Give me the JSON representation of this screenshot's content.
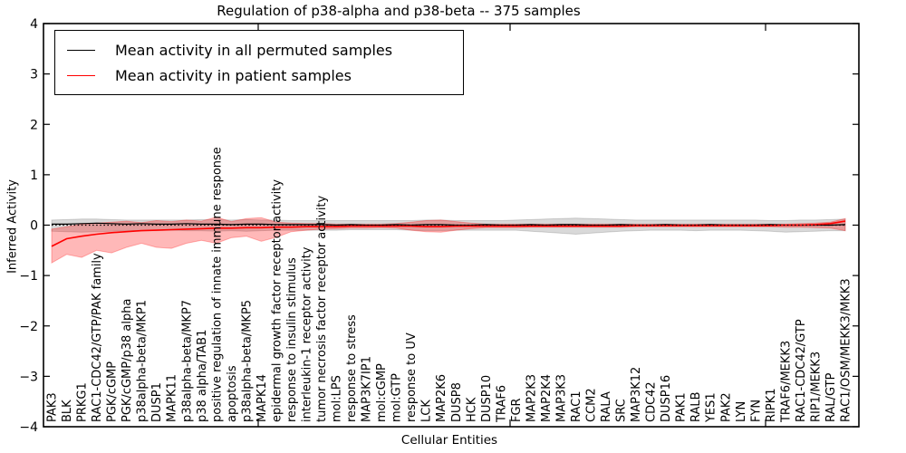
{
  "colors": {
    "permuted_line": "#000000",
    "patient_line": "#ff0000",
    "permuted_band": "rgba(0,0,0,0.15)",
    "patient_band": "rgba(255,0,0,0.28)",
    "frame": "#000000",
    "background": "#ffffff"
  },
  "chart_data": {
    "type": "line",
    "title": "Regulation of p38-alpha and p38-beta -- 375 samples",
    "xlabel": "Cellular Entities",
    "ylabel": "Inferred Activity",
    "ylim": [
      -4,
      4
    ],
    "yticks": [
      "4",
      "3",
      "2",
      "1",
      "0",
      "−1",
      "−2",
      "−3",
      "−4"
    ],
    "grid": false,
    "legend_position": "upper left",
    "zero_line": "dotted",
    "categories": [
      "PAK3",
      "BLK",
      "PRKG1",
      "RAC1-CDC42/GTP/PAK family",
      "PGK/cGMP",
      "PGK/cGMP/p38 alpha",
      "p38alpha-beta/MKP1",
      "DUSP1",
      "MAPK11",
      "p38alpha-beta/MKP7",
      "p38 alpha/TAB1",
      "positive regulation of innate immune response",
      "apoptosis",
      "p38alpha-beta/MKP5",
      "MAPK14",
      "epidermal growth factor receptor activity",
      "response to insulin stimulus",
      "interleukin-1 receptor activity",
      "tumor necrosis factor receptor activity",
      "mol:LPS",
      "response to stress",
      "MAP3K7IP1",
      "mol:cGMP",
      "mol:GTP",
      "response to UV",
      "LCK",
      "MAP2K6",
      "DUSP8",
      "HCK",
      "DUSP10",
      "TRAF6",
      "FGR",
      "MAP2K3",
      "MAP2K4",
      "MAP3K3",
      "RAC1",
      "CCM2",
      "RALA",
      "SRC",
      "MAP3K12",
      "CDC42",
      "DUSP16",
      "PAK1",
      "RALB",
      "YES1",
      "PAK2",
      "LYN",
      "FYN",
      "RIPK1",
      "TRAF6/MEKK3",
      "RAC1-CDC42/GTP",
      "RIP1/MEKK3",
      "RAL/GTP",
      "RAC1/OSM/MEKK3/MKK3"
    ],
    "series": [
      {
        "name": "Mean activity in all permuted samples",
        "color": "#000000",
        "band_color": "rgba(0,0,0,0.15)",
        "values": [
          0.02,
          0.02,
          0.03,
          0.04,
          0.03,
          0.02,
          0.03,
          0.02,
          0.02,
          0.03,
          0.02,
          0.02,
          0.01,
          0.02,
          0.02,
          0.01,
          0.01,
          0.01,
          0.01,
          0.0,
          0.01,
          0.0,
          0.0,
          0.01,
          0.0,
          0.01,
          0.01,
          0.0,
          0.0,
          0.01,
          0.0,
          0.0,
          0.01,
          0.0,
          0.01,
          0.01,
          0.0,
          0.0,
          0.01,
          0.0,
          0.0,
          0.01,
          0.0,
          0.0,
          0.01,
          0.0,
          0.0,
          0.0,
          0.01,
          0.0,
          0.0,
          0.0,
          0.0,
          0.01
        ],
        "band_high": [
          0.1,
          0.11,
          0.12,
          0.12,
          0.11,
          0.1,
          0.1,
          0.1,
          0.1,
          0.1,
          0.11,
          0.11,
          0.1,
          0.11,
          0.1,
          0.1,
          0.09,
          0.09,
          0.09,
          0.09,
          0.09,
          0.09,
          0.09,
          0.09,
          0.09,
          0.1,
          0.1,
          0.09,
          0.09,
          0.09,
          0.09,
          0.1,
          0.11,
          0.12,
          0.13,
          0.14,
          0.13,
          0.12,
          0.11,
          0.1,
          0.1,
          0.1,
          0.1,
          0.1,
          0.1,
          0.1,
          0.1,
          0.1,
          0.09,
          0.09,
          0.1,
          0.1,
          0.11,
          0.12
        ],
        "band_low": [
          -0.12,
          -0.13,
          -0.14,
          -0.13,
          -0.12,
          -0.11,
          -0.11,
          -0.11,
          -0.1,
          -0.11,
          -0.11,
          -0.12,
          -0.11,
          -0.12,
          -0.11,
          -0.1,
          -0.1,
          -0.1,
          -0.1,
          -0.1,
          -0.09,
          -0.09,
          -0.09,
          -0.09,
          -0.1,
          -0.11,
          -0.11,
          -0.1,
          -0.1,
          -0.1,
          -0.1,
          -0.1,
          -0.12,
          -0.14,
          -0.16,
          -0.18,
          -0.16,
          -0.14,
          -0.12,
          -0.11,
          -0.1,
          -0.1,
          -0.1,
          -0.11,
          -0.1,
          -0.1,
          -0.1,
          -0.11,
          -0.12,
          -0.14,
          -0.13,
          -0.12,
          -0.11,
          -0.11
        ]
      },
      {
        "name": "Mean activity in patient samples",
        "color": "#ff0000",
        "band_color": "rgba(255,0,0,0.28)",
        "values": [
          -0.42,
          -0.27,
          -0.22,
          -0.18,
          -0.15,
          -0.13,
          -0.11,
          -0.1,
          -0.09,
          -0.08,
          -0.07,
          -0.06,
          -0.06,
          -0.05,
          -0.05,
          -0.04,
          -0.04,
          -0.03,
          -0.03,
          -0.03,
          -0.02,
          -0.02,
          -0.02,
          -0.02,
          -0.02,
          -0.03,
          -0.03,
          -0.02,
          -0.02,
          -0.02,
          -0.02,
          -0.02,
          -0.02,
          -0.02,
          -0.02,
          -0.02,
          -0.02,
          -0.02,
          -0.02,
          -0.01,
          -0.01,
          -0.01,
          -0.01,
          -0.01,
          -0.01,
          -0.01,
          -0.01,
          -0.01,
          -0.01,
          0.0,
          0.0,
          0.01,
          0.03,
          0.08
        ],
        "band_high": [
          -0.08,
          -0.03,
          0.02,
          0.04,
          0.06,
          0.08,
          0.05,
          0.09,
          0.07,
          0.1,
          0.08,
          0.16,
          0.07,
          0.13,
          0.15,
          0.06,
          0.04,
          0.03,
          0.03,
          0.02,
          0.02,
          0.02,
          0.02,
          0.03,
          0.06,
          0.09,
          0.1,
          0.07,
          0.04,
          0.02,
          0.02,
          0.02,
          0.02,
          0.02,
          0.02,
          0.02,
          0.02,
          0.02,
          0.02,
          0.02,
          0.02,
          0.02,
          0.02,
          0.02,
          0.02,
          0.02,
          0.02,
          0.02,
          0.02,
          0.02,
          0.03,
          0.04,
          0.06,
          0.13
        ],
        "band_low": [
          -0.75,
          -0.58,
          -0.64,
          -0.5,
          -0.55,
          -0.44,
          -0.36,
          -0.44,
          -0.46,
          -0.36,
          -0.3,
          -0.36,
          -0.25,
          -0.22,
          -0.32,
          -0.24,
          -0.13,
          -0.1,
          -0.08,
          -0.07,
          -0.06,
          -0.06,
          -0.05,
          -0.06,
          -0.1,
          -0.13,
          -0.14,
          -0.1,
          -0.07,
          -0.05,
          -0.05,
          -0.05,
          -0.04,
          -0.04,
          -0.04,
          -0.04,
          -0.04,
          -0.04,
          -0.04,
          -0.03,
          -0.03,
          -0.03,
          -0.03,
          -0.03,
          -0.03,
          -0.03,
          -0.03,
          -0.03,
          -0.03,
          -0.04,
          -0.04,
          -0.05,
          -0.06,
          -0.11
        ]
      }
    ]
  }
}
